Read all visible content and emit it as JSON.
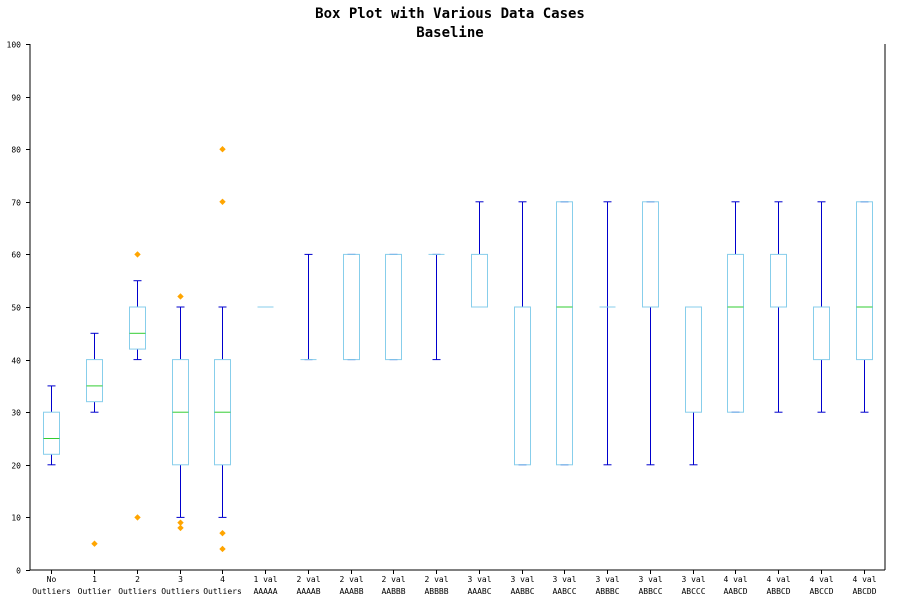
{
  "chart_data": {
    "type": "box",
    "title": "Box Plot with Various Data Cases",
    "subtitle": "Baseline",
    "xlabel": "",
    "ylabel": "",
    "ylim": [
      0,
      100
    ],
    "yticks": [
      0,
      10,
      20,
      30,
      40,
      50,
      60,
      70,
      80,
      90,
      100
    ],
    "grid": false,
    "colors": {
      "box": "#87ceeb",
      "whisker": "#0000cd",
      "median": "#32cd32",
      "outlier": "#ffa500",
      "axis": "#000000"
    },
    "categories": [
      {
        "line1": "No",
        "line2": "Outliers",
        "min": 20,
        "q1": 22,
        "median": 25,
        "q3": 30,
        "max": 35,
        "outliers": []
      },
      {
        "line1": "1",
        "line2": "Outlier",
        "min": 30,
        "q1": 32,
        "median": 35,
        "q3": 40,
        "max": 45,
        "outliers": [
          5
        ]
      },
      {
        "line1": "2",
        "line2": "Outliers",
        "min": 40,
        "q1": 42,
        "median": 45,
        "q3": 50,
        "max": 55,
        "outliers": [
          10,
          60
        ]
      },
      {
        "line1": "3",
        "line2": "Outliers",
        "min": 10,
        "q1": 20,
        "median": 30,
        "q3": 40,
        "max": 50,
        "outliers": [
          8,
          9,
          52
        ]
      },
      {
        "line1": "4",
        "line2": "Outliers",
        "min": 10,
        "q1": 20,
        "median": 30,
        "q3": 40,
        "max": 50,
        "outliers": [
          4,
          7,
          70,
          80
        ]
      },
      {
        "line1": "1 val",
        "line2": "AAAAA",
        "min": 50,
        "q1": 50,
        "median": 50,
        "q3": 50,
        "max": 50,
        "outliers": []
      },
      {
        "line1": "2 val",
        "line2": "AAAAB",
        "min": 40,
        "q1": 40,
        "median": 40,
        "q3": 40,
        "max": 60,
        "outliers": []
      },
      {
        "line1": "2 val",
        "line2": "AAABB",
        "min": 40,
        "q1": 40,
        "median": 40,
        "q3": 60,
        "max": 60,
        "outliers": []
      },
      {
        "line1": "2 val",
        "line2": "AABBB",
        "min": 40,
        "q1": 40,
        "median": 60,
        "q3": 60,
        "max": 60,
        "outliers": []
      },
      {
        "line1": "2 val",
        "line2": "ABBBB",
        "min": 40,
        "q1": 60,
        "median": 60,
        "q3": 60,
        "max": 60,
        "outliers": []
      },
      {
        "line1": "3 val",
        "line2": "AAABC",
        "min": 50,
        "q1": 50,
        "median": 50,
        "q3": 60,
        "max": 70,
        "outliers": []
      },
      {
        "line1": "3 val",
        "line2": "AABBC",
        "min": 20,
        "q1": 20,
        "median": 50,
        "q3": 50,
        "max": 70,
        "outliers": []
      },
      {
        "line1": "3 val",
        "line2": "AABCC",
        "min": 20,
        "q1": 20,
        "median": 50,
        "q3": 70,
        "max": 70,
        "outliers": []
      },
      {
        "line1": "3 val",
        "line2": "ABBBC",
        "min": 20,
        "q1": 50,
        "median": 50,
        "q3": 50,
        "max": 70,
        "outliers": []
      },
      {
        "line1": "3 val",
        "line2": "ABBCC",
        "min": 20,
        "q1": 50,
        "median": 50,
        "q3": 70,
        "max": 70,
        "outliers": []
      },
      {
        "line1": "3 val",
        "line2": "ABCCC",
        "min": 20,
        "q1": 30,
        "median": 50,
        "q3": 50,
        "max": 50,
        "outliers": []
      },
      {
        "line1": "4 val",
        "line2": "AABCD",
        "min": 30,
        "q1": 30,
        "median": 50,
        "q3": 60,
        "max": 70,
        "outliers": []
      },
      {
        "line1": "4 val",
        "line2": "ABBCD",
        "min": 30,
        "q1": 50,
        "median": 50,
        "q3": 60,
        "max": 70,
        "outliers": []
      },
      {
        "line1": "4 val",
        "line2": "ABCCD",
        "min": 30,
        "q1": 40,
        "median": 50,
        "q3": 50,
        "max": 70,
        "outliers": []
      },
      {
        "line1": "4 val",
        "line2": "ABCDD",
        "min": 30,
        "q1": 40,
        "median": 50,
        "q3": 70,
        "max": 70,
        "outliers": []
      }
    ]
  }
}
